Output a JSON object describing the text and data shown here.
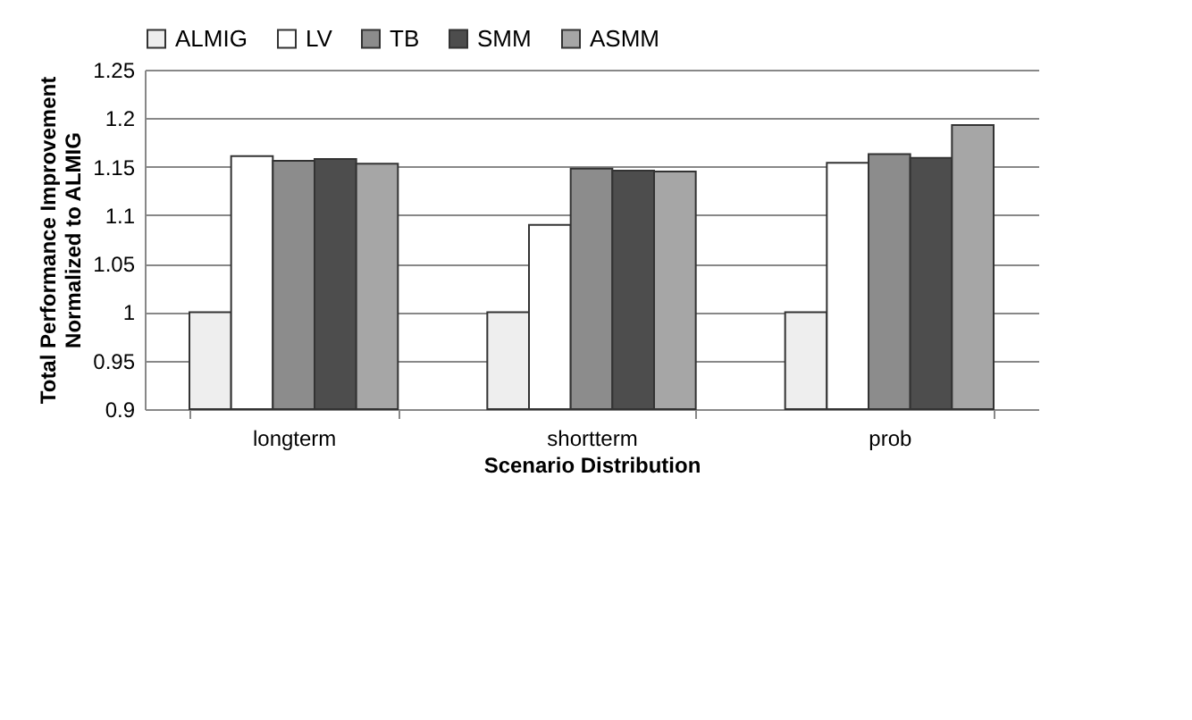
{
  "chart_data": {
    "type": "bar",
    "xlabel": "Scenario Distribution",
    "ylabel": "Total Performance Improvement Normalized to ALMIG",
    "categories": [
      "longterm",
      "shortterm",
      "prob"
    ],
    "series": [
      {
        "name": "ALMIG",
        "color": "#eeeeee",
        "values": [
          1,
          1,
          1
        ]
      },
      {
        "name": "LV",
        "color": "#ffffff",
        "values": [
          1.161,
          1.09,
          1.154
        ]
      },
      {
        "name": "TB",
        "color": "#8c8c8c",
        "values": [
          1.156,
          1.148,
          1.163
        ]
      },
      {
        "name": "SMM",
        "color": "#4d4d4d",
        "values": [
          1.158,
          1.146,
          1.159
        ]
      },
      {
        "name": "ASMM",
        "color": "#a6a6a6",
        "values": [
          1.153,
          1.145,
          1.193
        ]
      }
    ],
    "ylim": [
      0.9,
      1.25
    ],
    "yticks": [
      0.9,
      0.95,
      1,
      1.05,
      1.1,
      1.15,
      1.2,
      1.25
    ],
    "grid": "y",
    "legend": "top"
  }
}
